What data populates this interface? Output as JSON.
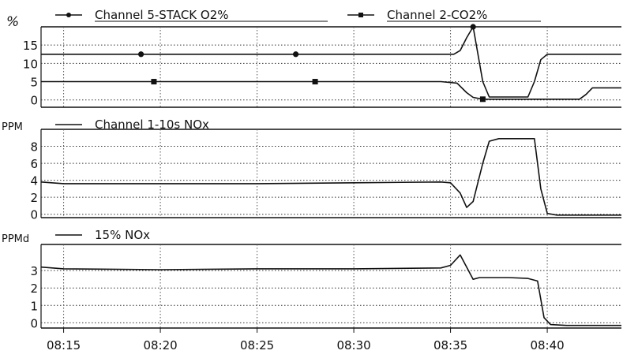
{
  "chart_data": [
    {
      "type": "line",
      "ylabel": "%",
      "yticks": [
        0,
        5,
        10,
        15
      ],
      "ylim": [
        -2,
        20
      ],
      "xlim": [
        "08:13:50",
        "08:43:50"
      ],
      "grid": true,
      "legend_position": "top",
      "series": [
        {
          "name": "Channel 5-STACK O2%",
          "marker": "circle",
          "x": [
            "08:13:50",
            "08:19:00",
            "08:27:00",
            "08:34:30",
            "08:35:10",
            "08:35:30",
            "08:35:50",
            "08:36:10",
            "08:36:40",
            "08:37:00",
            "08:39:00",
            "08:39:20",
            "08:39:40",
            "08:40:00",
            "08:40:30",
            "08:43:50"
          ],
          "y": [
            12.5,
            12.5,
            12.5,
            12.5,
            12.5,
            13.5,
            17,
            20,
            5,
            0.8,
            0.8,
            5,
            11,
            12.5,
            12.5,
            12.5
          ]
        },
        {
          "name": "Channel 2-CO2%",
          "marker": "square",
          "x": [
            "08:13:50",
            "08:19:40",
            "08:28:00",
            "08:34:30",
            "08:35:20",
            "08:35:50",
            "08:36:10",
            "08:36:40",
            "08:41:40",
            "08:42:00",
            "08:42:20",
            "08:43:50"
          ],
          "y": [
            5,
            5,
            5,
            5,
            4.6,
            2,
            0.7,
            0.2,
            0.2,
            1.5,
            3.3,
            3.3
          ]
        }
      ]
    },
    {
      "type": "line",
      "ylabel": "PPM",
      "yticks": [
        0,
        2,
        4,
        6,
        8
      ],
      "ylim": [
        -0.4,
        10
      ],
      "xlim": [
        "08:13:50",
        "08:43:50"
      ],
      "grid": true,
      "legend_position": "top",
      "series": [
        {
          "name": "Channel 1-10s NOx",
          "x": [
            "08:13:50",
            "08:15:00",
            "08:20:00",
            "08:25:00",
            "08:30:00",
            "08:34:30",
            "08:35:00",
            "08:35:30",
            "08:35:50",
            "08:36:10",
            "08:36:40",
            "08:37:00",
            "08:37:30",
            "08:38:00",
            "08:39:20",
            "08:39:40",
            "08:40:00",
            "08:40:30",
            "08:43:50"
          ],
          "y": [
            3.8,
            3.6,
            3.6,
            3.6,
            3.7,
            3.8,
            3.7,
            2.5,
            0.8,
            1.5,
            6,
            8.6,
            8.9,
            8.9,
            8.9,
            3,
            0.1,
            -0.1,
            -0.1
          ]
        }
      ]
    },
    {
      "type": "line",
      "ylabel": "PPMd",
      "yticks": [
        0,
        1,
        2,
        3
      ],
      "ylim": [
        -0.3,
        4.5
      ],
      "xlim": [
        "08:13:50",
        "08:43:50"
      ],
      "xticks": [
        "08:15",
        "08:20",
        "08:25",
        "08:30",
        "08:35",
        "08:40"
      ],
      "grid": true,
      "legend_position": "top",
      "series": [
        {
          "name": "15% NOx",
          "x": [
            "08:13:50",
            "08:15:00",
            "08:20:00",
            "08:25:00",
            "08:30:00",
            "08:34:30",
            "08:35:00",
            "08:35:30",
            "08:35:50",
            "08:36:10",
            "08:36:30",
            "08:38:00",
            "08:39:00",
            "08:39:30",
            "08:39:50",
            "08:40:10",
            "08:41:00",
            "08:43:50"
          ],
          "y": [
            3.2,
            3.1,
            3.05,
            3.1,
            3.1,
            3.15,
            3.3,
            3.9,
            3.2,
            2.5,
            2.6,
            2.6,
            2.55,
            2.4,
            0.3,
            -0.1,
            -0.15,
            -0.15
          ]
        }
      ]
    }
  ]
}
